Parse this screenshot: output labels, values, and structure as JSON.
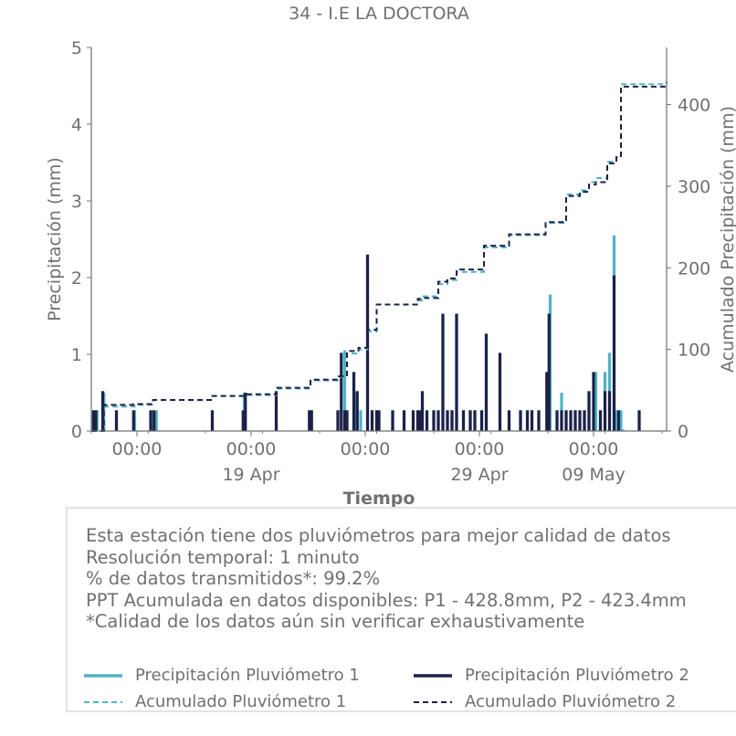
{
  "chart_data": {
    "type": "bar+line",
    "title": "34 - I.E LA DOCTORA",
    "xlabel": "Tiempo",
    "ylabel_left": "Precipitación (mm)",
    "ylabel_right": "Acumulado Precipitación (mm)",
    "ylim_left": [
      0,
      5
    ],
    "ylim_right": [
      0,
      470
    ],
    "yticks_left": [
      "0",
      "1",
      "2",
      "3",
      "4",
      "5"
    ],
    "yticks_right": [
      "0",
      "100",
      "200",
      "300",
      "400"
    ],
    "xlim_days": [
      0,
      25.2
    ],
    "x_unit": "days from 10 Apr 00:00",
    "xticks": [
      {
        "day": 2,
        "time": "00:00",
        "date": ""
      },
      {
        "day": 7,
        "time": "00:00",
        "date": "19 Apr"
      },
      {
        "day": 12,
        "time": "00:00",
        "date": ""
      },
      {
        "day": 17,
        "time": "00:00",
        "date": "29 Apr"
      },
      {
        "day": 22,
        "time": "00:00",
        "date": "09 May"
      }
    ],
    "grid": false,
    "legend_position": "bottom",
    "series": [
      {
        "name": "Precipitación Pluviómetro 1",
        "kind": "bar",
        "color": "#4fb3c4",
        "x": [
          0.05,
          0.25,
          0.55,
          1.1,
          1.9,
          2.7,
          2.85,
          5.3,
          6.7,
          8.1,
          9.6,
          10.8,
          11.1,
          11.2,
          11.5,
          11.6,
          11.8,
          12.1,
          12.3,
          12.5,
          12.6,
          13.2,
          13.7,
          14.1,
          14.3,
          14.4,
          14.5,
          14.7,
          15.0,
          15.2,
          15.4,
          15.6,
          15.8,
          16.0,
          16.3,
          16.6,
          16.8,
          17.1,
          17.3,
          17.9,
          18.3,
          18.8,
          19.1,
          19.3,
          19.6,
          20.0,
          20.1,
          20.4,
          20.6,
          20.8,
          21.0,
          21.2,
          21.4,
          21.6,
          21.8,
          22.1,
          22.3,
          22.5,
          22.7,
          22.9,
          23.0,
          23.2,
          23.3,
          24.0
        ],
        "values": [
          0.27,
          0.27,
          0.5,
          0.27,
          0.27,
          0.27,
          0.27,
          0.27,
          0.5,
          0.27,
          0.27,
          0.27,
          1.05,
          0.27,
          0.77,
          0.5,
          0.27,
          2.25,
          0.27,
          0.27,
          0.27,
          0.27,
          0.27,
          0.27,
          0.27,
          0.27,
          0.5,
          0.27,
          0.27,
          0.27,
          1.5,
          0.27,
          0.27,
          1.5,
          0.27,
          0.27,
          0.27,
          0.27,
          1.25,
          1.0,
          0.27,
          0.27,
          0.27,
          0.27,
          0.27,
          0.77,
          1.78,
          0.27,
          0.5,
          0.27,
          0.27,
          0.27,
          0.27,
          0.27,
          0.5,
          0.77,
          0.27,
          0.77,
          1.02,
          2.55,
          0.27,
          0.27,
          0.02,
          0.27
        ]
      },
      {
        "name": "Precipitación Pluviómetro 2",
        "kind": "bar",
        "color": "#1d2147",
        "x": [
          0.1,
          0.2,
          0.5,
          1.1,
          1.85,
          2.6,
          2.75,
          5.3,
          6.65,
          6.75,
          8.1,
          9.55,
          9.65,
          10.8,
          10.95,
          11.1,
          11.2,
          11.5,
          11.65,
          12.1,
          12.3,
          12.5,
          12.6,
          13.2,
          13.7,
          14.1,
          14.3,
          14.4,
          14.5,
          14.7,
          15.0,
          15.2,
          15.4,
          15.6,
          15.8,
          16.0,
          16.3,
          16.6,
          16.8,
          17.1,
          17.3,
          17.9,
          18.3,
          18.8,
          19.1,
          19.3,
          19.6,
          19.95,
          20.05,
          20.4,
          20.6,
          20.8,
          21.0,
          21.2,
          21.4,
          21.6,
          21.8,
          22.0,
          22.3,
          22.5,
          22.7,
          22.9,
          23.1,
          24.0
        ],
        "values": [
          0.27,
          0.27,
          0.52,
          0.27,
          0.27,
          0.27,
          0.27,
          0.27,
          0.27,
          0.5,
          0.52,
          0.27,
          0.27,
          0.27,
          1.02,
          0.27,
          0.27,
          0.77,
          0.52,
          2.3,
          0.27,
          0.27,
          0.27,
          0.27,
          0.27,
          0.27,
          0.27,
          0.27,
          0.52,
          0.27,
          0.27,
          0.27,
          1.53,
          0.27,
          0.27,
          1.53,
          0.27,
          0.27,
          0.27,
          0.27,
          1.27,
          1.02,
          0.27,
          0.27,
          0.27,
          0.27,
          0.27,
          0.77,
          1.53,
          0.27,
          0.27,
          0.27,
          0.27,
          0.27,
          0.27,
          0.27,
          0.52,
          0.77,
          0.27,
          0.52,
          0.52,
          2.03,
          0.27,
          0.27
        ]
      },
      {
        "name": "Acumulado Pluviómetro 1",
        "kind": "step-line",
        "color": "#4fb3c4",
        "dash": "dashed",
        "x": [
          0,
          0.55,
          1.9,
          2.7,
          5.3,
          6.7,
          8.1,
          9.6,
          10.8,
          11.2,
          11.7,
          12.1,
          12.5,
          14.3,
          14.5,
          15.2,
          15.6,
          16.0,
          17.2,
          17.9,
          18.3,
          19.9,
          20.1,
          20.8,
          21.4,
          21.8,
          22.1,
          22.6,
          23.0,
          23.2,
          25.2
        ],
        "values": [
          0,
          30,
          32,
          38,
          43,
          44,
          52,
          62,
          66,
          95,
          100,
          122,
          155,
          160,
          165,
          180,
          185,
          195,
          225,
          225,
          240,
          255,
          255,
          290,
          295,
          305,
          310,
          330,
          335,
          425,
          428.8
        ]
      },
      {
        "name": "Acumulado Pluviómetro 2",
        "kind": "step-line",
        "color": "#1d2147",
        "dash": "dashed",
        "x": [
          0,
          0.55,
          1.85,
          2.7,
          5.3,
          6.7,
          8.1,
          9.6,
          10.8,
          11.2,
          11.7,
          12.1,
          12.5,
          14.3,
          14.5,
          15.2,
          15.6,
          16.0,
          17.2,
          17.9,
          18.3,
          19.9,
          20.1,
          20.8,
          21.4,
          21.8,
          22.1,
          22.6,
          23.0,
          23.2,
          25.2
        ],
        "values": [
          0,
          32,
          33,
          38,
          43,
          45,
          53,
          63,
          67,
          98,
          102,
          124,
          155,
          162,
          163,
          183,
          187,
          198,
          227,
          227,
          241,
          256,
          256,
          288,
          293,
          302,
          305,
          328,
          337,
          422,
          423.4
        ]
      }
    ]
  },
  "info": {
    "line1": "Esta estación tiene dos pluviómetros para mejor calidad de datos",
    "line2": "Resolución temporal: 1 minuto",
    "line3": "% de datos transmitidos*: 99.2%",
    "line4": "PPT Acumulada en datos disponibles: P1 - 428.8mm, P2 - 423.4mm",
    "line5": "*Calidad de los datos aún sin verificar exhaustivamente"
  },
  "legend": [
    {
      "label": "Precipitación Pluviómetro 1",
      "color": "#4fb3c4",
      "style": "solid"
    },
    {
      "label": "Precipitación Pluviómetro 2",
      "color": "#1d2147",
      "style": "solid"
    },
    {
      "label": "Acumulado Pluviómetro 1",
      "color": "#4fb3c4",
      "style": "dashed"
    },
    {
      "label": "Acumulado Pluviómetro 2",
      "color": "#1d2147",
      "style": "dashed"
    }
  ]
}
